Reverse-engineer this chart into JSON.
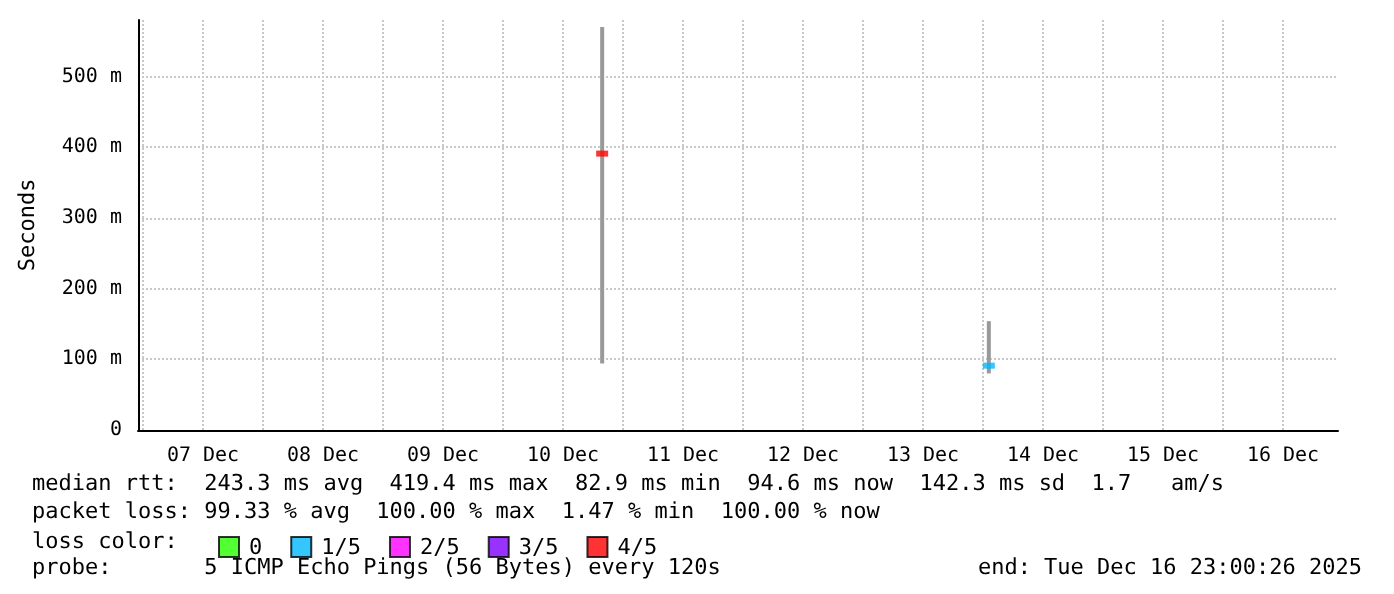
{
  "chart_data": {
    "type": "bar",
    "ylabel": "Seconds",
    "legend_title": "loss color:",
    "legend": "bottom",
    "grid": true,
    "marker": "square",
    "xlim": [
      "2025-12-06T23:00",
      "2025-12-16T23:00"
    ],
    "xticks": [
      {
        "value": "2025-12-07T00:00",
        "label": null
      },
      {
        "value": "2025-12-07T12:00",
        "label": "07 Dec"
      },
      {
        "value": "2025-12-08T00:00",
        "label": null
      },
      {
        "value": "2025-12-08T12:00",
        "label": "08 Dec"
      },
      {
        "value": "2025-12-09T00:00",
        "label": null
      },
      {
        "value": "2025-12-09T12:00",
        "label": "09 Dec"
      },
      {
        "value": "2025-12-10T00:00",
        "label": null
      },
      {
        "value": "2025-12-10T12:00",
        "label": "10 Dec"
      },
      {
        "value": "2025-12-11T00:00",
        "label": null
      },
      {
        "value": "2025-12-11T12:00",
        "label": "11 Dec"
      },
      {
        "value": "2025-12-12T00:00",
        "label": null
      },
      {
        "value": "2025-12-12T12:00",
        "label": "12 Dec"
      },
      {
        "value": "2025-12-13T00:00",
        "label": null
      },
      {
        "value": "2025-12-13T12:00",
        "label": "13 Dec"
      },
      {
        "value": "2025-12-14T00:00",
        "label": null
      },
      {
        "value": "2025-12-14T12:00",
        "label": "14 Dec"
      },
      {
        "value": "2025-12-15T00:00",
        "label": null
      },
      {
        "value": "2025-12-15T12:00",
        "label": "15 Dec"
      },
      {
        "value": "2025-12-16T00:00",
        "label": null
      },
      {
        "value": "2025-12-16T12:00",
        "label": "16 Dec"
      }
    ],
    "ylim": [
      0,
      580
    ],
    "yticks": [
      0,
      {
        "value": 100,
        "label": "100 m"
      },
      {
        "value": 200,
        "label": "200 m"
      },
      {
        "value": 300,
        "label": "300 m"
      },
      {
        "value": 400,
        "label": "400 m"
      },
      {
        "value": 500,
        "label": "500 m"
      }
    ],
    "series": [
      {
        "color": "#999999",
        "x": [
          "2025-12-10T19:50",
          "2025-12-14T01:10"
        ],
        "base": [
          94,
          80
        ],
        "values": [
          476,
          74
        ]
      },
      {
        "type": "scatter",
        "name": "0",
        "color": "#26ff00"
      },
      {
        "type": "scatter",
        "name": "1/5",
        "color": "#00b8ff",
        "x": [
          "2025-12-14T01:10"
        ],
        "values": [
          91
        ]
      },
      {
        "type": "scatter",
        "name": "2/5",
        "color": "#ff00ff"
      },
      {
        "type": "scatter",
        "name": "3/5",
        "color": "#7e00ff"
      },
      {
        "type": "scatter",
        "name": "4/5",
        "color": "#ff0000",
        "x": [
          "2025-12-10T19:50"
        ],
        "values": [
          391
        ]
      }
    ],
    "annotations": [
      "median rtt:  243.3 ms avg  419.4 ms max  82.9 ms min  94.6 ms now  142.3 ms sd  1.7   am/s",
      "packet loss: 99.33 % avg  100.00 % max  1.47 % min  100.00 % now",
      "probe:       5 ICMP Echo Pings (56 Bytes) every 120s",
      "end: Tue Dec 16 23:00:26 2025"
    ]
  }
}
